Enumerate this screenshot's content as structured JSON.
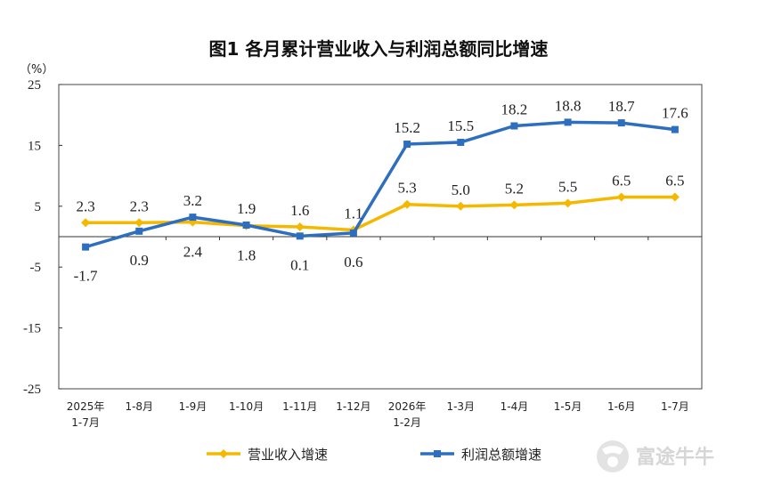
{
  "chart_data": {
    "type": "line",
    "title": "图1  各月累计营业收入与利润总额同比增速",
    "unit_label": "（%）",
    "categories": [
      [
        "2025年",
        "1-7月"
      ],
      [
        "1-8月"
      ],
      [
        "1-9月"
      ],
      [
        "1-10月"
      ],
      [
        "1-11月"
      ],
      [
        "1-12月"
      ],
      [
        "2026年",
        "1-2月"
      ],
      [
        "1-3月"
      ],
      [
        "1-4月"
      ],
      [
        "1-5月"
      ],
      [
        "1-6月"
      ],
      [
        "1-7月"
      ]
    ],
    "yticks": [
      25,
      15,
      5,
      -5,
      -15,
      -25
    ],
    "ylim": [
      -25,
      25
    ],
    "grid": false,
    "legend_position": "bottom",
    "series": [
      {
        "name": "营业收入增速",
        "color": "#f5b800",
        "marker": "diamond",
        "values": [
          2.3,
          2.3,
          2.4,
          1.8,
          1.6,
          1.1,
          5.3,
          5.0,
          5.2,
          5.5,
          6.5,
          6.5
        ],
        "labels": [
          "2.3",
          "2.3",
          "2.4",
          "1.8",
          "1.6",
          "1.1",
          "5.3",
          "5.0",
          "5.2",
          "5.5",
          "6.5",
          "6.5"
        ]
      },
      {
        "name": "利润总额增速",
        "color": "#2e6ebf",
        "marker": "square",
        "values": [
          -1.7,
          0.9,
          3.2,
          1.9,
          0.1,
          0.6,
          15.2,
          15.5,
          18.2,
          18.8,
          18.7,
          17.6
        ],
        "labels": [
          "-1.7",
          "0.9",
          "3.2",
          "1.9",
          "0.1",
          "0.6",
          "15.2",
          "15.5",
          "18.2",
          "18.8",
          "18.7",
          "17.6"
        ]
      }
    ]
  },
  "watermark": {
    "text": "富途牛牛",
    "icon": "futu-bull-icon"
  }
}
